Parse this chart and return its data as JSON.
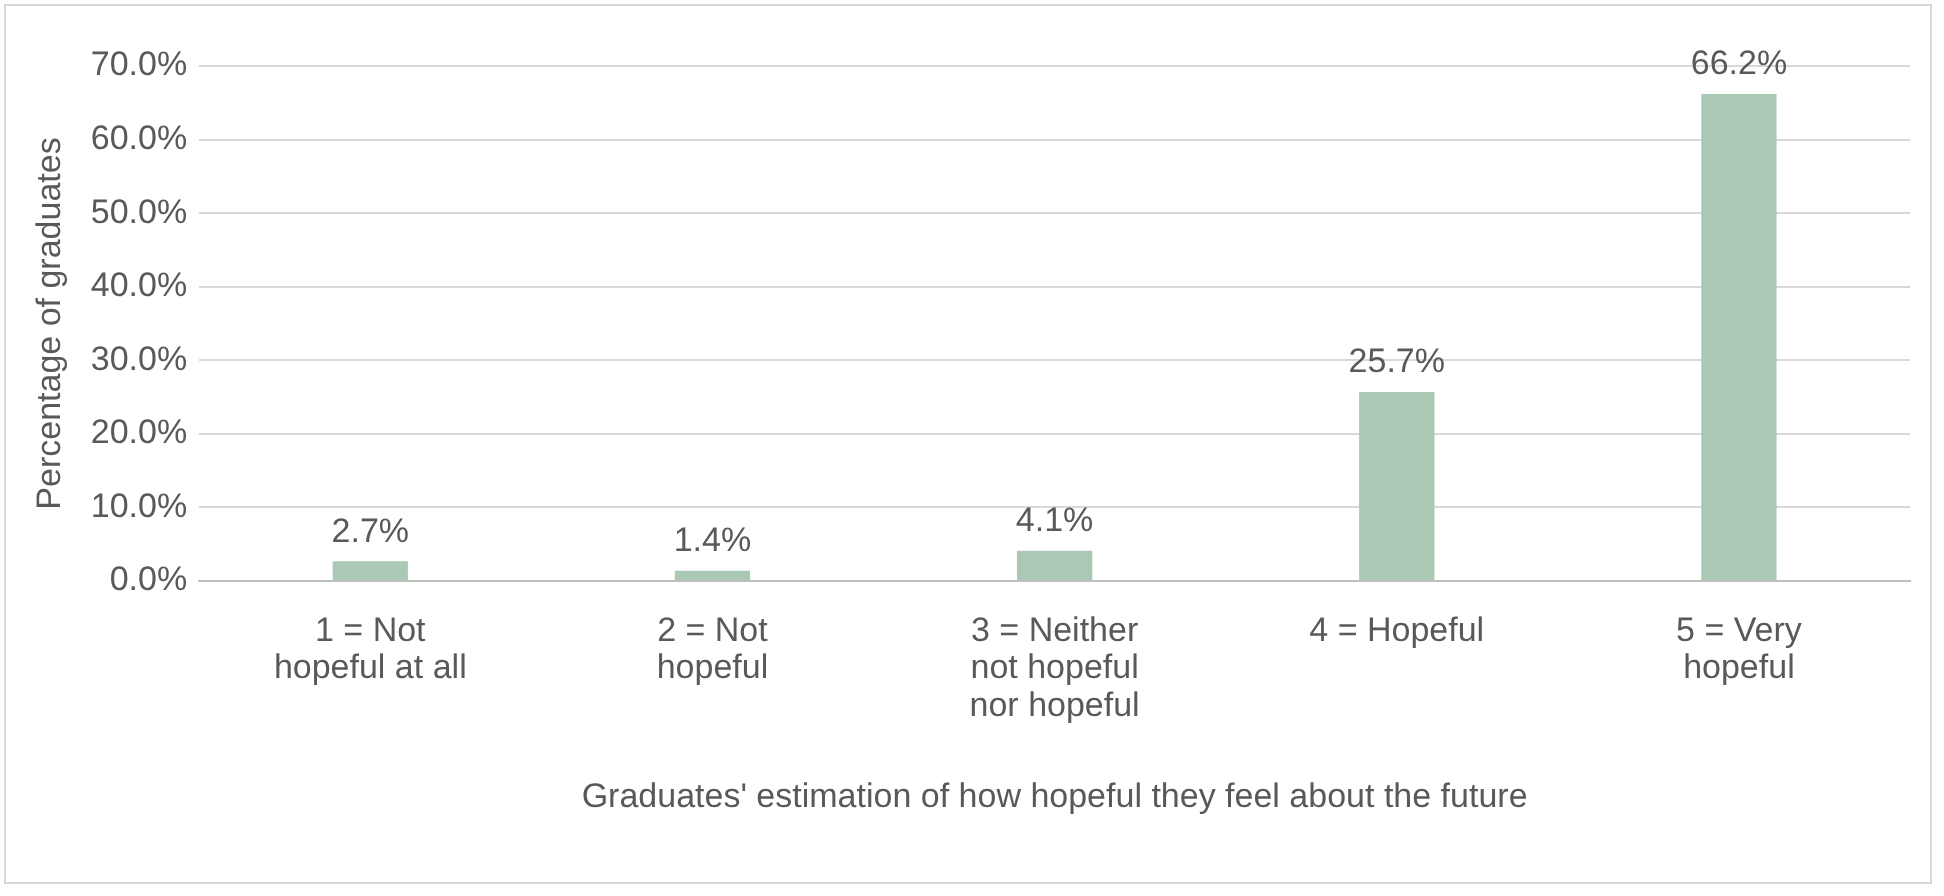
{
  "chart_data": {
    "type": "bar",
    "xlabel": "Graduates' estimation of how hopeful they feel about the future",
    "ylabel": "Percentage of graduates",
    "categories": [
      "1 = Not hopeful at all",
      "2 = Not hopeful",
      "3 = Neither not hopeful nor hopeful",
      "4 = Hopeful",
      "5 = Very hopeful"
    ],
    "values": [
      2.7,
      1.4,
      4.1,
      25.7,
      66.2
    ],
    "value_labels": [
      "2.7%",
      "1.4%",
      "4.1%",
      "25.7%",
      "66.2%"
    ],
    "color": "#a9c9b5",
    "ylim": [
      0,
      70
    ],
    "yticks": [
      {
        "value": 0,
        "label": "0.0%"
      },
      {
        "value": 10,
        "label": "10.0%"
      },
      {
        "value": 20,
        "label": "20.0%"
      },
      {
        "value": 30,
        "label": "30.0%"
      },
      {
        "value": 40,
        "label": "40.0%"
      },
      {
        "value": 50,
        "label": "50.0%"
      },
      {
        "value": 60,
        "label": "60.0%"
      },
      {
        "value": 70,
        "label": "70.0%"
      }
    ],
    "grid": "y",
    "legend": false
  }
}
